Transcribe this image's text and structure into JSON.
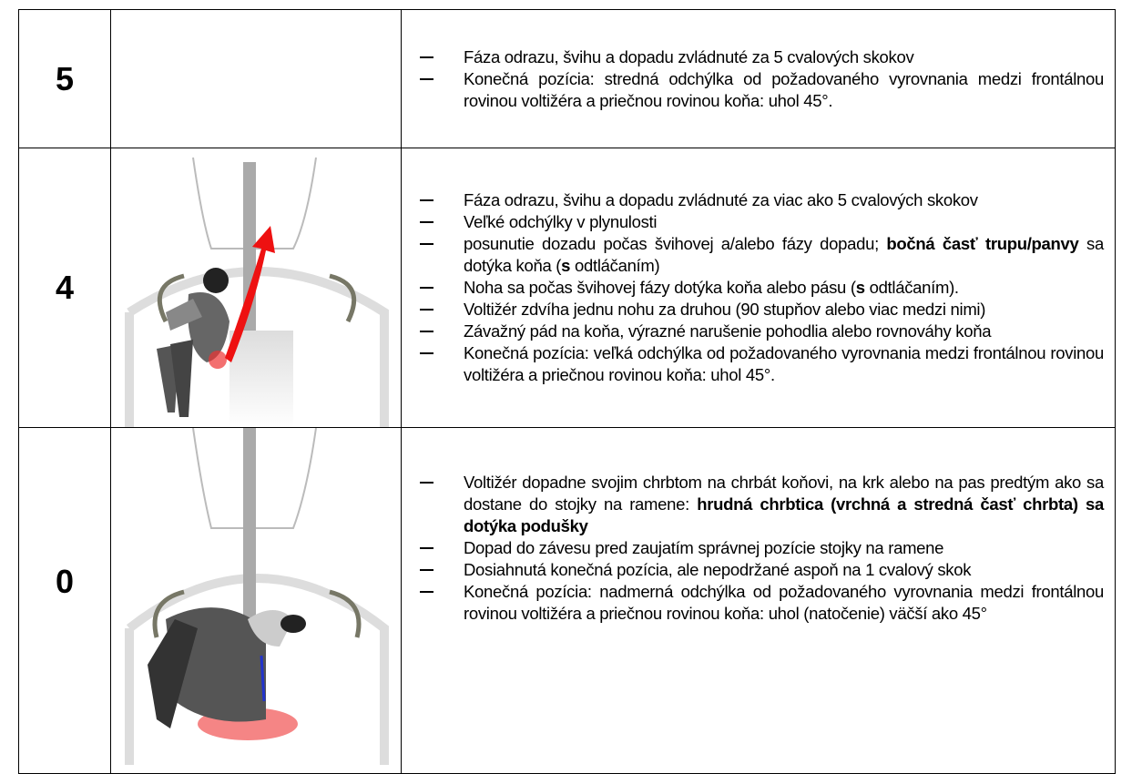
{
  "table": {
    "rows": [
      {
        "score": "5",
        "items": [
          [
            "Fáza odrazu, švihu a dopadu zvládnuté za 5 cvalových skokov"
          ],
          [
            "Konečná pozícia: stredná odchýlka od požadovaného vyrovnania medzi frontálnou rovinou voltižéra a priečnou rovinou koňa: uhol 45°."
          ]
        ]
      },
      {
        "score": "4",
        "items": [
          [
            "Fáza odrazu, švihu a dopadu zvládnuté za viac ako 5 cvalových skokov"
          ],
          [
            "Veľké odchýlky v plynulosti"
          ],
          [
            "posunutie dozadu počas švihovej a/alebo fázy dopadu; ",
            {
              "text": "bočná časť trupu/panvy",
              "bold": true
            },
            " sa dotýka koňa (",
            {
              "text": "s",
              "bold": true
            },
            " odtláčaním)"
          ],
          [
            "Noha sa počas švihovej fázy dotýka koňa alebo pásu (",
            {
              "text": "s",
              "bold": true
            },
            " odtláčaním)."
          ],
          [
            "Voltižér zdvíha jednu nohu za druhou (90 stupňov alebo viac medzi nimi)"
          ],
          [
            "Závažný pád na koňa, výrazné narušenie pohodlia alebo rovnováhy koňa"
          ],
          [
            "Konečná pozícia: veľká odchýlka od požadovaného vyrovnania medzi frontálnou rovinou voltižéra a priečnou rovinou koňa: uhol 45°."
          ]
        ]
      },
      {
        "score": "0",
        "items": [
          [
            "Voltižér dopadne svojim chrbtom na chrbát koňovi, na krk alebo na pas predtým ako sa dostane do stojky na ramene: ",
            {
              "text": "hrudná chrbtica (vrchná a stredná časť chrbta) sa dotýka podušky",
              "bold": true
            }
          ],
          [
            "Dopad do závesu pred zaujatím správnej pozície stojky na ramene"
          ],
          [
            "Dosiahnutá konečná pozícia, ale nepodržané aspoň na 1 cvalový skok"
          ],
          [
            "Konečná pozícia: nadmerná odchýlka od požadovaného vyrovnania medzi frontálnou rovinou voltižéra a priečnou rovinou koňa: uhol (natočenie) väčší ako 45°"
          ]
        ]
      }
    ]
  }
}
